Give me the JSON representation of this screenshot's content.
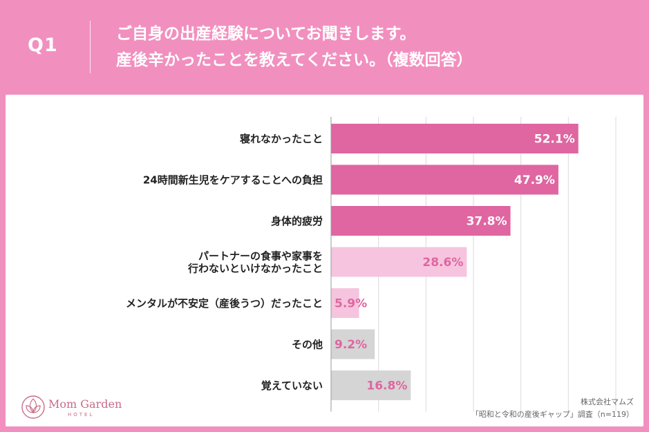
{
  "header": {
    "q_label": "Q1",
    "title_line1": "ご自身の出産経験についてお聞きします。",
    "title_line2": "産後辛かったことを教えてください。（複数回答）"
  },
  "colors": {
    "background": "#F190BF",
    "bar_strong": "#DF66A1",
    "bar_light": "#F6C4DE",
    "bar_gray": "#D5D5D5",
    "label_on_strong": "#FFFFFF",
    "label_on_light": "#DF66A1"
  },
  "chart_data": {
    "type": "bar",
    "orientation": "horizontal",
    "categories": [
      [
        "寝れなかったこと"
      ],
      [
        "24時間新生児をケアすることへの負担"
      ],
      [
        "身体的疲労"
      ],
      [
        "パートナーの食事や家事を",
        "行わないといけなかったこと"
      ],
      [
        "メンタルが不安定（産後うつ）だったこと"
      ],
      [
        "その他"
      ],
      [
        "覚えていない"
      ]
    ],
    "values": [
      52.1,
      47.9,
      37.8,
      28.6,
      5.9,
      9.2,
      16.8
    ],
    "value_labels": [
      "52.1%",
      "47.9%",
      "37.8%",
      "28.6%",
      "5.9%",
      "9.2%",
      "16.8%"
    ],
    "bar_styles": [
      "strong",
      "strong",
      "strong",
      "light",
      "light",
      "gray",
      "gray"
    ],
    "xlim": [
      0,
      60
    ],
    "grid": true
  },
  "logo": {
    "name": "Mom Garden",
    "sub": "HOTEL"
  },
  "source": {
    "line1": "株式会社マムズ",
    "line2": "「昭和と令和の産後ギャップ」調査（n=119）"
  }
}
